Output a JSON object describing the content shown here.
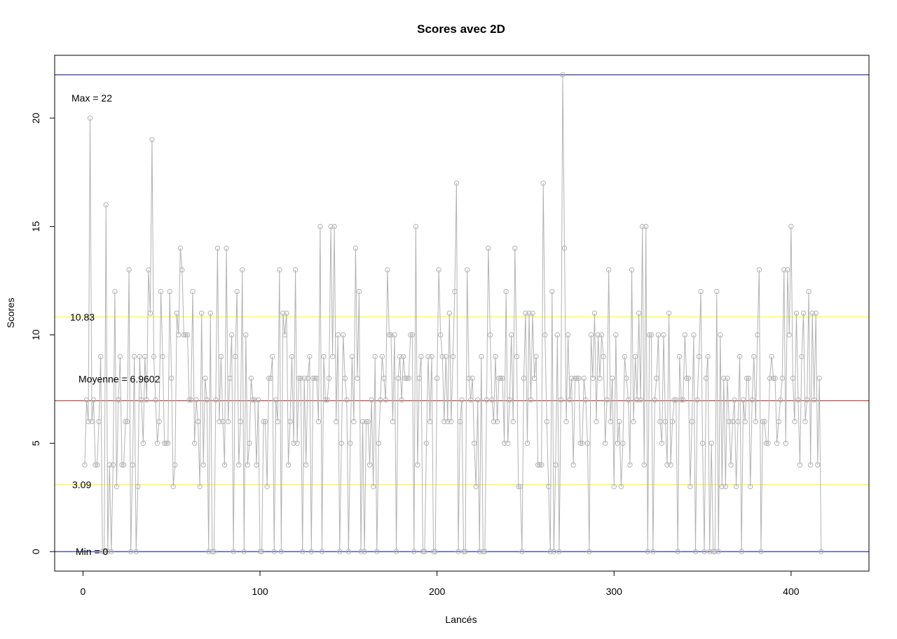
{
  "chart_data": {
    "type": "line",
    "title": "Scores avec 2D",
    "xlabel": "Lancés",
    "ylabel": "Scores",
    "xlim": [
      -16,
      444
    ],
    "ylim": [
      -0.9,
      22.9
    ],
    "xticks": [
      0,
      100,
      200,
      300,
      400
    ],
    "yticks": [
      0,
      5,
      10,
      15,
      20
    ],
    "grid": false,
    "series": [
      {
        "style": "lines+open-circles",
        "color": "#b3b3b3",
        "x_start": 1,
        "values": [
          4,
          7,
          6,
          20,
          6,
          7,
          4,
          4,
          6,
          9,
          0,
          0,
          16,
          0,
          4,
          0,
          4,
          12,
          3,
          7,
          9,
          4,
          4,
          6,
          6,
          13,
          0,
          4,
          9,
          0,
          3,
          9,
          7,
          5,
          9,
          7,
          13,
          11,
          19,
          9,
          7,
          5,
          6,
          12,
          9,
          5,
          5,
          5,
          12,
          8,
          3,
          4,
          11,
          10,
          14,
          13,
          10,
          10,
          10,
          7,
          7,
          12,
          5,
          7,
          6,
          3,
          11,
          4,
          8,
          7,
          0,
          11,
          0,
          0,
          7,
          14,
          6,
          9,
          6,
          4,
          14,
          6,
          8,
          10,
          0,
          9,
          12,
          4,
          6,
          13,
          0,
          10,
          4,
          5,
          8,
          7,
          7,
          4,
          7,
          0,
          0,
          6,
          6,
          3,
          8,
          8,
          9,
          0,
          7,
          6,
          13,
          0,
          11,
          10,
          11,
          4,
          6,
          9,
          5,
          13,
          5,
          8,
          8,
          0,
          8,
          4,
          8,
          9,
          0,
          8,
          8,
          8,
          6,
          15,
          0,
          9,
          7,
          7,
          8,
          15,
          9,
          15,
          6,
          10,
          0,
          5,
          10,
          8,
          7,
          0,
          5,
          9,
          6,
          14,
          8,
          12,
          0,
          6,
          0,
          6,
          6,
          4,
          7,
          3,
          9,
          0,
          5,
          7,
          9,
          8,
          7,
          13,
          10,
          10,
          6,
          10,
          0,
          8,
          9,
          7,
          9,
          8,
          8,
          8,
          10,
          10,
          0,
          15,
          4,
          8,
          9,
          0,
          0,
          5,
          9,
          6,
          9,
          0,
          0,
          8,
          13,
          10,
          9,
          6,
          9,
          6,
          11,
          6,
          9,
          12,
          17,
          0,
          6,
          7,
          0,
          0,
          13,
          8,
          7,
          8,
          5,
          3,
          7,
          0,
          9,
          0,
          0,
          7,
          14,
          10,
          7,
          6,
          9,
          6,
          8,
          8,
          8,
          5,
          12,
          5,
          7,
          10,
          6,
          14,
          9,
          3,
          3,
          0,
          8,
          11,
          5,
          11,
          7,
          11,
          8,
          9,
          4,
          4,
          4,
          17,
          10,
          6,
          3,
          0,
          12,
          0,
          4,
          10,
          0,
          7,
          22,
          14,
          6,
          10,
          7,
          8,
          4,
          8,
          8,
          8,
          5,
          5,
          8,
          7,
          5,
          0,
          10,
          8,
          11,
          6,
          10,
          8,
          10,
          9,
          5,
          7,
          13,
          6,
          8,
          3,
          10,
          5,
          6,
          3,
          5,
          9,
          8,
          7,
          4,
          13,
          6,
          9,
          7,
          11,
          7,
          15,
          4,
          15,
          0,
          10,
          10,
          0,
          7,
          8,
          10,
          6,
          5,
          10,
          6,
          4,
          11,
          4,
          6,
          7,
          7,
          0,
          9,
          7,
          7,
          10,
          8,
          8,
          3,
          6,
          10,
          0,
          7,
          9,
          12,
          5,
          0,
          8,
          9,
          0,
          5,
          0,
          0,
          12,
          0,
          10,
          3,
          8,
          3,
          8,
          6,
          4,
          6,
          7,
          3,
          6,
          9,
          0,
          7,
          6,
          8,
          8,
          3,
          7,
          9,
          6,
          10,
          13,
          0,
          6,
          6,
          5,
          5,
          8,
          9,
          8,
          8,
          5,
          6,
          7,
          8,
          13,
          5,
          13,
          10,
          15,
          8,
          6,
          11,
          7,
          4,
          9,
          11,
          6,
          7,
          12,
          4,
          11,
          7,
          11,
          4,
          8,
          0
        ]
      }
    ],
    "reference_lines": [
      {
        "label": "Max =  22",
        "value": 22,
        "color": "#00008b"
      },
      {
        "label": "10.83",
        "value": 10.83,
        "color": "#ffff00"
      },
      {
        "label": "Moyenne =  6.9602",
        "value": 6.9602,
        "color": "#b22222"
      },
      {
        "label": "3.09",
        "value": 3.09,
        "color": "#ffff00"
      },
      {
        "label": "Min =  0",
        "value": 0,
        "color": "#00008b"
      }
    ]
  }
}
